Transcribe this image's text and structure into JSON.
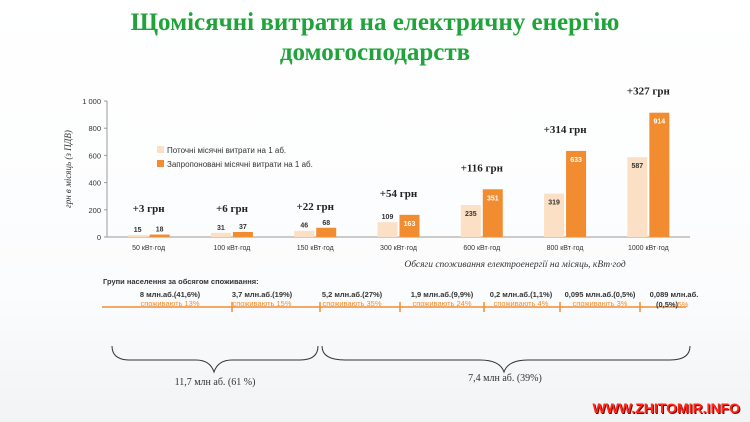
{
  "title_line1": "Щомісячні витрати на електричну енергію",
  "title_line2": "домогосподарств",
  "chart_data": {
    "type": "bar",
    "ylabel": "грн в місяць (з ПДВ)",
    "xlabel": "Обсяги споживання електроенергії на місяць, кВт·год",
    "ylim": [
      0,
      1000
    ],
    "yticks": [
      "0",
      "200",
      "400",
      "600",
      "800",
      "1 000"
    ],
    "ytick_values": [
      0,
      200,
      400,
      600,
      800,
      1000
    ],
    "categories": [
      "50 кВт·год",
      "100 кВт·год",
      "150 кВт·год",
      "300 кВт·год",
      "600 кВт·год",
      "800 кВт·год",
      "1000 кВт·год"
    ],
    "series": [
      {
        "name": "Поточні місячні витрати на 1 аб.",
        "color": "#fbe0c6",
        "values": [
          15,
          31,
          46,
          109,
          235,
          319,
          587
        ]
      },
      {
        "name": "Запропоновані місячні витрати на 1 аб.",
        "color": "#f28c30",
        "values": [
          18,
          37,
          68,
          163,
          351,
          633,
          914
        ]
      }
    ],
    "annotations": [
      "+3 грн",
      "+6 грн",
      "+22 грн",
      "+54 грн",
      "+116 грн",
      "+314 грн",
      "+327 грн"
    ],
    "legend_position": "upper-left"
  },
  "groups": {
    "heading": "Групи населення  за обсягом споживання:",
    "items": [
      {
        "count": "8 млн.аб.(41,6%)",
        "note": "споживають 13%"
      },
      {
        "count": "3,7 млн.аб.(19%)",
        "note": "споживають 15%"
      },
      {
        "count": "5,2 млн.аб.(27%)",
        "note": "споживають 35%"
      },
      {
        "count": "1,9 млн.аб.(9,9%)",
        "note": "споживають 24%"
      },
      {
        "count": "0,2 млн.аб.(1,1%)",
        "note": "споживають 4%"
      },
      {
        "count": "0,095 млн.аб.(0,5%)",
        "note": "споживають 3%"
      }
    ],
    "last_count_line1": "0,089 млн.аб.",
    "last_count_line2": "(0,5%)",
    "last_note": "5%"
  },
  "brackets": {
    "left_label": "11,7 млн аб. (61 %)",
    "right_label": "7,4 млн аб. (39%)"
  },
  "accent_color": "#f28c30",
  "title_color": "#1fa33a",
  "watermark": "WWW.ZHITOMIR.INFO"
}
